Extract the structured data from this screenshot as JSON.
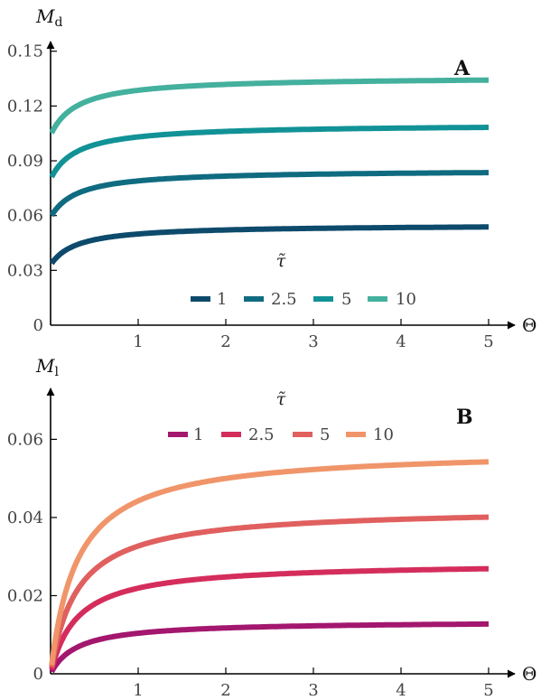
{
  "chart_data": [
    {
      "panel": "A",
      "type": "line",
      "ylabel_main": "M",
      "ylabel_sub": "d",
      "xlabel": "Θ",
      "xlim": [
        0,
        5
      ],
      "ylim": [
        0,
        0.165
      ],
      "xticks": [
        1,
        2,
        3,
        4,
        5
      ],
      "xtick_labels": [
        "1",
        "2",
        "3",
        "4",
        "5"
      ],
      "yticks": [
        0,
        0.03,
        0.06,
        0.09,
        0.12,
        0.15
      ],
      "ytick_labels": [
        "0",
        "0.03",
        "0.06",
        "0.09",
        "0.12",
        "0.15"
      ],
      "legend_title": "τ̃",
      "legend_position": "bottom-right",
      "series": [
        {
          "name": "1",
          "color": "#0d4a6b",
          "start": 0.033,
          "end": 0.055
        },
        {
          "name": "2.5",
          "color": "#0f6b80",
          "start": 0.059,
          "end": 0.085
        },
        {
          "name": "5",
          "color": "#119296",
          "start": 0.08,
          "end": 0.11
        },
        {
          "name": "10",
          "color": "#44b09e",
          "start": 0.104,
          "end": 0.136
        }
      ]
    },
    {
      "panel": "B",
      "type": "line",
      "ylabel_main": "M",
      "ylabel_sub": "l",
      "xlabel": "Θ",
      "xlim": [
        0,
        5
      ],
      "ylim": [
        0,
        0.07
      ],
      "xticks": [
        1,
        2,
        3,
        4,
        5
      ],
      "xtick_labels": [
        "1",
        "2",
        "3",
        "4",
        "5"
      ],
      "yticks": [
        0,
        0.02,
        0.04,
        0.06
      ],
      "ytick_labels": [
        "0",
        "0.02",
        "0.04",
        "0.06"
      ],
      "legend_title": "τ̃",
      "legend_position": "top-center",
      "series": [
        {
          "name": "1",
          "color": "#a3176e",
          "start": 0,
          "end": 0.0135
        },
        {
          "name": "2.5",
          "color": "#d42d5c",
          "start": 0,
          "end": 0.0285
        },
        {
          "name": "5",
          "color": "#e0605f",
          "start": 0,
          "end": 0.0425
        },
        {
          "name": "10",
          "color": "#f0956a",
          "start": 0,
          "end": 0.0575
        }
      ]
    }
  ]
}
